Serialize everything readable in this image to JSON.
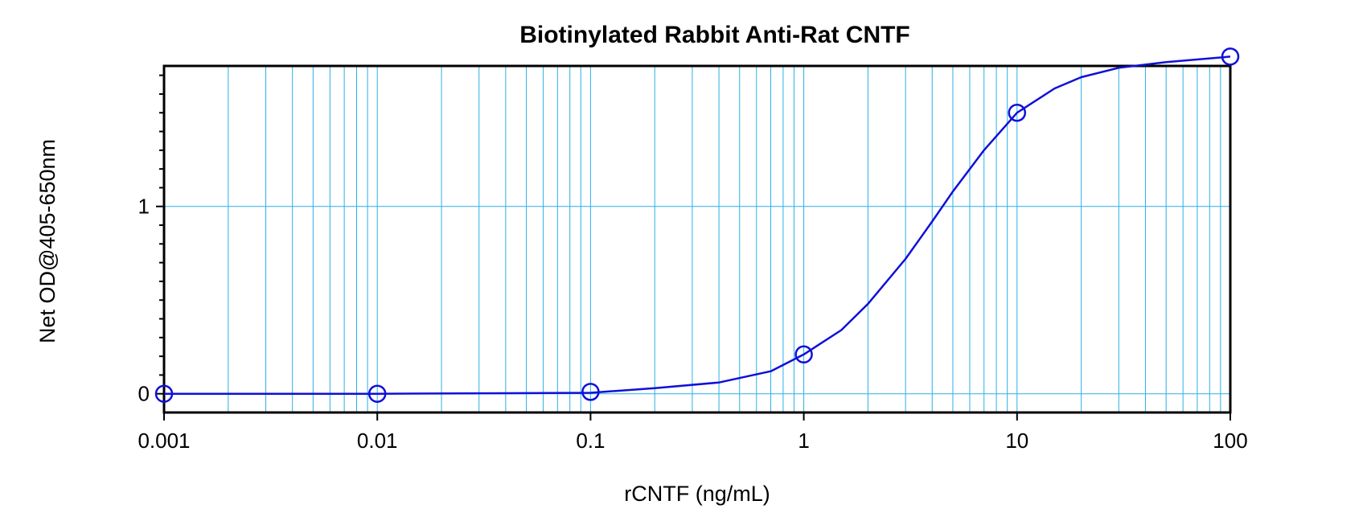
{
  "chart_data": {
    "type": "scatter",
    "title": "Biotinylated Rabbit Anti-Rat CNTF",
    "xlabel": "rCNTF (ng/mL)",
    "ylabel": "Net OD@405-650nm",
    "x_scale": "log",
    "xlim": [
      0.001,
      100
    ],
    "ylim": [
      -0.1,
      1.75
    ],
    "x_ticks": [
      {
        "value": 0.001,
        "label": "0.001"
      },
      {
        "value": 0.01,
        "label": "0.01"
      },
      {
        "value": 0.1,
        "label": "0.1"
      },
      {
        "value": 1,
        "label": "1"
      },
      {
        "value": 10,
        "label": "10"
      },
      {
        "value": 100,
        "label": "100"
      }
    ],
    "y_ticks": [
      {
        "value": 0,
        "label": "0"
      },
      {
        "value": 1,
        "label": "1"
      }
    ],
    "grid": true,
    "colors": {
      "grid": "#2ab0e8",
      "series": "#1010d8",
      "axes": "#000000"
    },
    "series": [
      {
        "marker": "open-circle",
        "x": [
          0.001,
          0.01,
          0.1,
          1,
          10,
          100
        ],
        "y": [
          0.0,
          0.0,
          0.01,
          0.21,
          1.5,
          1.8
        ]
      }
    ],
    "fit_curve": {
      "type": "4PL",
      "x": [
        0.1,
        0.2,
        0.4,
        0.7,
        1,
        1.5,
        2,
        3,
        4,
        5,
        7,
        10,
        15,
        20,
        30,
        50,
        100
      ],
      "y": [
        0.005,
        0.03,
        0.06,
        0.12,
        0.21,
        0.34,
        0.48,
        0.72,
        0.92,
        1.08,
        1.3,
        1.5,
        1.63,
        1.69,
        1.74,
        1.77,
        1.8
      ]
    }
  }
}
